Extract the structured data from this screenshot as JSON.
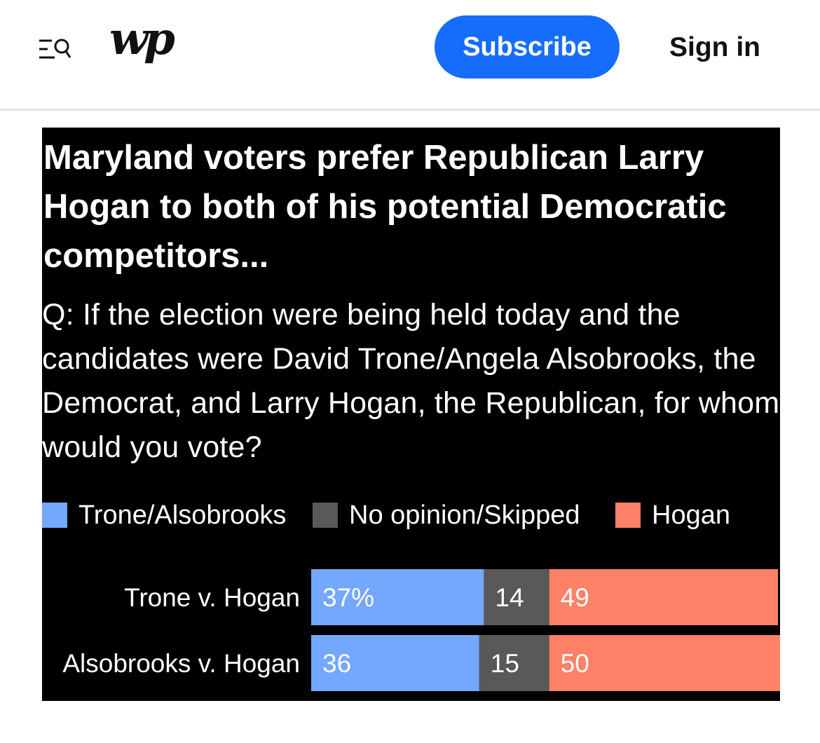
{
  "header": {
    "logo_text": "wp",
    "subscribe_label": "Subscribe",
    "signin_label": "Sign in"
  },
  "graphic": {
    "title": "Maryland voters prefer Republican Larry Hogan to both of his potential Democratic competitors...",
    "question": "Q: If the election were being held today and the candidates were David Trone/Angela Alsobrooks, the Democrat, and Larry Hogan, the Republican, for whom would you vote?"
  },
  "colors": {
    "trone_alsobrooks": "#74a8ff",
    "no_opinion": "#595959",
    "hogan": "#ff8168",
    "background": "#000000",
    "subscribe": "#166dfc"
  },
  "chart_data": {
    "type": "bar",
    "orientation": "horizontal",
    "stacked": true,
    "categories": [
      "Trone v. Hogan",
      "Alsobrooks v. Hogan"
    ],
    "series": [
      {
        "name": "Trone/Alsobrooks",
        "values": [
          37,
          36
        ],
        "labels": [
          "37%",
          "36"
        ]
      },
      {
        "name": "No opinion/Skipped",
        "values": [
          14,
          15
        ],
        "labels": [
          "14",
          "15"
        ]
      },
      {
        "name": "Hogan",
        "values": [
          49,
          50
        ],
        "labels": [
          "49",
          "50"
        ]
      }
    ],
    "xlim": [
      0,
      100
    ],
    "grid": false,
    "legend_position": "top"
  }
}
